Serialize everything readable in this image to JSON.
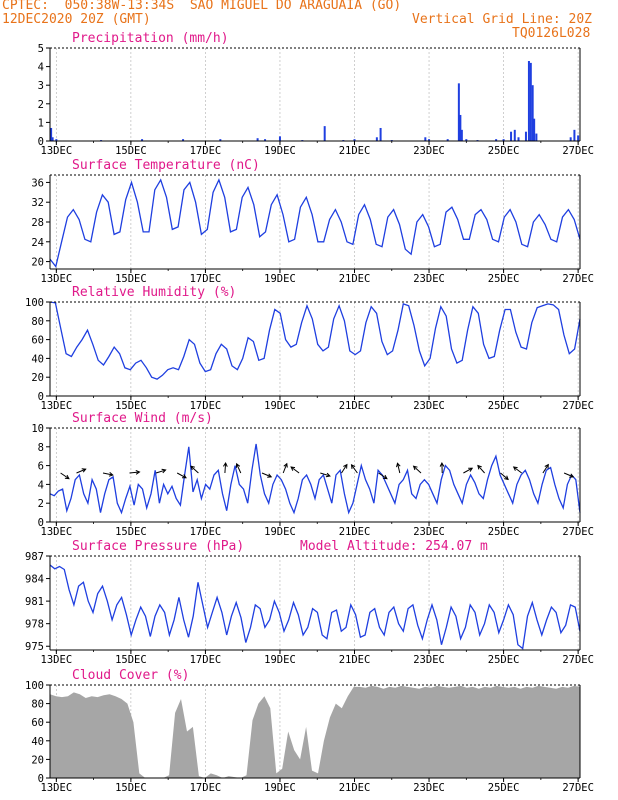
{
  "header": {
    "line1": "CPTEC:  050:38W-13:34S  SAO MIGUEL DO ARAGUAIA (GO)",
    "line2_left": "12DEC2020 20Z (GMT)",
    "line2_right": "Vertical Grid Line: 20Z",
    "line3_right": "TQ0126L028"
  },
  "colors": {
    "header": "#e8731a",
    "title": "#e0198a",
    "series": "#1f3fe0",
    "cloud": "#a6a6a6"
  },
  "chart_data": [
    {
      "type": "bar",
      "title": "Precipitation (mm/h)",
      "x_ticks": [
        "13DEC",
        "15DEC",
        "17DEC",
        "19DEC",
        "21DEC",
        "23DEC",
        "25DEC",
        "27DEC"
      ],
      "ylim": [
        0,
        5
      ],
      "y_ticks": [
        0,
        1,
        2,
        3,
        4,
        5
      ],
      "x_start_day": 12.83,
      "points": [
        [
          12.86,
          0.7
        ],
        [
          12.9,
          0.2
        ],
        [
          13.0,
          0.1
        ],
        [
          14.2,
          0.05
        ],
        [
          15.3,
          0.1
        ],
        [
          16.4,
          0.1
        ],
        [
          17.4,
          0.1
        ],
        [
          18.4,
          0.15
        ],
        [
          18.6,
          0.1
        ],
        [
          19.0,
          0.25
        ],
        [
          19.6,
          0.05
        ],
        [
          20.2,
          0.8
        ],
        [
          20.7,
          0.05
        ],
        [
          21.0,
          0.1
        ],
        [
          21.6,
          0.2
        ],
        [
          21.7,
          0.7
        ],
        [
          22.0,
          0.05
        ],
        [
          22.9,
          0.2
        ],
        [
          23.0,
          0.1
        ],
        [
          23.5,
          0.1
        ],
        [
          23.8,
          3.1
        ],
        [
          23.84,
          1.4
        ],
        [
          23.88,
          0.6
        ],
        [
          24.0,
          0.1
        ],
        [
          24.3,
          0.05
        ],
        [
          24.8,
          0.1
        ],
        [
          25.0,
          0.1
        ],
        [
          25.2,
          0.5
        ],
        [
          25.3,
          0.6
        ],
        [
          25.4,
          0.2
        ],
        [
          25.6,
          0.5
        ],
        [
          25.68,
          4.3
        ],
        [
          25.73,
          4.2
        ],
        [
          25.78,
          3.0
        ],
        [
          25.82,
          1.2
        ],
        [
          25.88,
          0.4
        ],
        [
          26.8,
          0.2
        ],
        [
          26.9,
          0.6
        ],
        [
          27.0,
          0.3
        ]
      ]
    },
    {
      "type": "line",
      "title": "Surface Temperature (nC)",
      "x_ticks": [
        "13DEC",
        "15DEC",
        "17DEC",
        "19DEC",
        "21DEC",
        "23DEC",
        "25DEC",
        "27DEC"
      ],
      "ylim": [
        18.5,
        37.5
      ],
      "y_ticks": [
        20,
        24,
        28,
        32,
        36
      ],
      "values": [
        20.5,
        19,
        24,
        29,
        30.5,
        28.5,
        24.5,
        24,
        30,
        33.5,
        32,
        25.5,
        26,
        32.5,
        36,
        32,
        26,
        26,
        34.5,
        36.5,
        33,
        26.5,
        27,
        34.5,
        36,
        32,
        25.5,
        26.5,
        34,
        36.5,
        33,
        26,
        26.5,
        33,
        35,
        31.5,
        25,
        26,
        31.5,
        33.5,
        29.5,
        24,
        24.5,
        31,
        33,
        29.5,
        24,
        24,
        28.5,
        30.5,
        28,
        24,
        23.5,
        29.5,
        31.5,
        28.5,
        23.5,
        23,
        29,
        30.5,
        27.5,
        22.5,
        21.5,
        28,
        29.5,
        27,
        23,
        23.5,
        30,
        31,
        28.5,
        24.5,
        24.5,
        29.5,
        30.5,
        28.5,
        24.5,
        24,
        29,
        30.5,
        28,
        23.5,
        23,
        28,
        29.5,
        27.5,
        24.5,
        24,
        29,
        30.5,
        28.5,
        24.5
      ]
    },
    {
      "type": "line",
      "title": "Relative Humidity (%)",
      "x_ticks": [
        "13DEC",
        "15DEC",
        "17DEC",
        "19DEC",
        "21DEC",
        "23DEC",
        "25DEC",
        "27DEC"
      ],
      "ylim": [
        0,
        100
      ],
      "y_ticks": [
        0,
        20,
        40,
        60,
        80,
        100
      ],
      "values": [
        100,
        99,
        72,
        45,
        42,
        52,
        60,
        70,
        55,
        38,
        33,
        42,
        52,
        45,
        30,
        28,
        35,
        38,
        30,
        20,
        18,
        22,
        28,
        30,
        28,
        42,
        60,
        55,
        35,
        26,
        28,
        45,
        55,
        50,
        32,
        28,
        40,
        62,
        58,
        38,
        40,
        70,
        92,
        88,
        60,
        52,
        55,
        78,
        96,
        82,
        55,
        48,
        52,
        82,
        96,
        80,
        48,
        44,
        48,
        78,
        95,
        88,
        58,
        44,
        48,
        70,
        98,
        96,
        75,
        48,
        32,
        40,
        72,
        95,
        85,
        50,
        35,
        38,
        70,
        95,
        88,
        55,
        40,
        42,
        70,
        92,
        92,
        68,
        52,
        50,
        78,
        94,
        96,
        98,
        97,
        92,
        65,
        45,
        50,
        82
      ]
    },
    {
      "type": "line",
      "title": "Surface Wind (m/s)",
      "x_ticks": [
        "13DEC",
        "15DEC",
        "17DEC",
        "19DEC",
        "21DEC",
        "23DEC",
        "25DEC",
        "27DEC"
      ],
      "ylim": [
        0,
        10
      ],
      "y_ticks": [
        0,
        2,
        4,
        6,
        8,
        10
      ],
      "values": [
        3,
        2.8,
        3.3,
        3.5,
        1.2,
        2.5,
        4.5,
        5,
        3,
        2,
        4.5,
        3.5,
        1,
        3,
        4.5,
        4.8,
        2,
        1,
        2.5,
        3.8,
        1.8,
        4,
        3.5,
        1.5,
        3,
        5.5,
        2,
        4,
        3,
        3.8,
        2.5,
        1.8,
        5,
        8,
        3.2,
        4.5,
        2.5,
        4,
        3.5,
        5,
        5.5,
        3,
        1.2,
        4,
        6,
        4,
        3.5,
        2,
        5.5,
        8.3,
        5,
        3,
        2,
        4,
        5,
        4.5,
        3.5,
        2,
        1,
        2.5,
        4.5,
        5,
        4,
        2.5,
        4.5,
        5,
        3.5,
        2,
        5,
        5.5,
        3,
        1,
        2,
        4,
        6,
        4.5,
        3.5,
        2,
        5.5,
        5,
        4,
        3,
        2,
        4,
        4.5,
        5.5,
        3,
        2.5,
        4,
        4.5,
        4,
        3,
        2,
        4.5,
        6,
        5.5,
        4,
        3,
        2,
        4,
        5,
        4.2,
        3,
        2.5,
        4.5,
        6,
        7,
        5,
        4,
        3,
        2,
        4,
        5,
        5.5,
        4.5,
        3,
        2,
        4,
        5.5,
        5.8,
        4,
        2.5,
        1.5,
        4,
        5,
        4.5,
        1
      ]
    },
    {
      "type": "line",
      "title": "Surface Pressure (hPa)",
      "annotation": "Model Altitude: 254.07 m",
      "x_ticks": [
        "13DEC",
        "15DEC",
        "17DEC",
        "19DEC",
        "21DEC",
        "23DEC",
        "25DEC",
        "27DEC"
      ],
      "ylim": [
        974.5,
        987
      ],
      "y_ticks": [
        975,
        978,
        981,
        984,
        987
      ],
      "y_tick_labels": [
        "975",
        "978",
        "981",
        "984",
        "987"
      ],
      "values": [
        985.8,
        985.3,
        985.6,
        985.2,
        982.5,
        980.5,
        983,
        983.5,
        981,
        979.5,
        982,
        983,
        981,
        978.5,
        980.5,
        981.5,
        979.2,
        976.5,
        978.5,
        980.2,
        979,
        976.3,
        979,
        980.5,
        979.5,
        976.5,
        978.5,
        981.5,
        978.5,
        976.2,
        979,
        983.5,
        980.5,
        977.5,
        979.5,
        981.5,
        979.5,
        976.5,
        979,
        980.8,
        978.8,
        975.5,
        977.5,
        980.5,
        980,
        977.5,
        978.5,
        981,
        979.5,
        977,
        978.5,
        980.8,
        979.2,
        976.5,
        977.5,
        980,
        979.5,
        976.5,
        976,
        979.5,
        979.8,
        977,
        977.5,
        980.5,
        979.2,
        976.2,
        976.5,
        979.5,
        980,
        977.5,
        976.5,
        979.5,
        980.2,
        978,
        977,
        980,
        980.5,
        977.8,
        976,
        978.5,
        980.5,
        978.5,
        975.2,
        977.5,
        980.2,
        979,
        976,
        977.5,
        980.5,
        979.5,
        976.5,
        978,
        980.5,
        979.5,
        976.8,
        978.5,
        980.5,
        979.2,
        975.2,
        974.7,
        979,
        980.8,
        978.5,
        976.5,
        978.5,
        980.2,
        979.5,
        976.8,
        977.8,
        980.5,
        980.2,
        977
      ]
    },
    {
      "type": "area",
      "title": "Cloud Cover (%)",
      "x_ticks": [
        "13DEC",
        "15DEC",
        "17DEC",
        "19DEC",
        "21DEC",
        "23DEC",
        "25DEC",
        "27DEC"
      ],
      "ylim": [
        0,
        100
      ],
      "y_ticks": [
        0,
        20,
        40,
        60,
        80,
        100
      ],
      "values": [
        90,
        88,
        87,
        88,
        92,
        90,
        86,
        88,
        87,
        89,
        90,
        88,
        85,
        80,
        60,
        5,
        0,
        0,
        0,
        0,
        3,
        70,
        85,
        50,
        55,
        2,
        0,
        5,
        3,
        0,
        2,
        1,
        0,
        3,
        62,
        80,
        88,
        75,
        5,
        10,
        50,
        30,
        20,
        55,
        8,
        5,
        40,
        65,
        80,
        75,
        88,
        98,
        98,
        97,
        99,
        98,
        96,
        98,
        97,
        99,
        98,
        97,
        96,
        98,
        97,
        99,
        98,
        97,
        98,
        99,
        97,
        98,
        96,
        98,
        97,
        99,
        98,
        97,
        98,
        96,
        98,
        97,
        99,
        98,
        97,
        96,
        98,
        97,
        99,
        98
      ]
    }
  ]
}
